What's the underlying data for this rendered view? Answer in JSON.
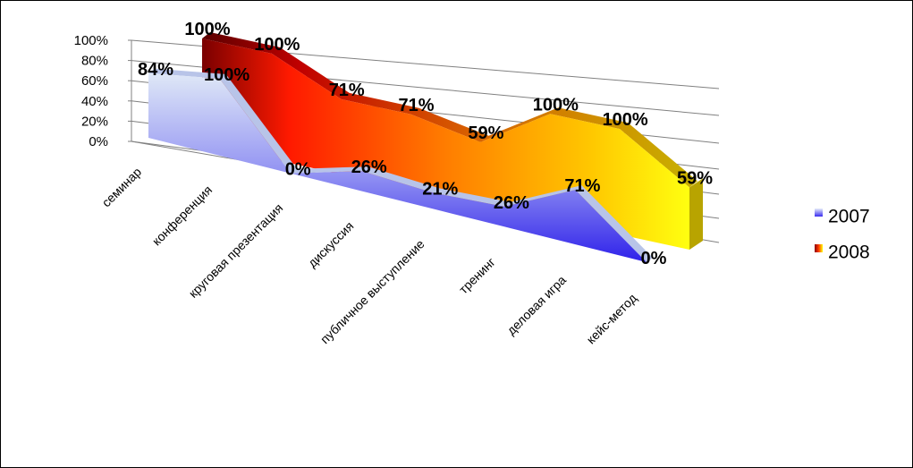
{
  "chart_data": {
    "type": "area",
    "style": "3d-area",
    "categories": [
      "семинар",
      "конференция",
      "круговая презентация",
      "дискуссия",
      "публичное выступление",
      "тренинг",
      "деловая игра",
      "кейс-метод"
    ],
    "series": [
      {
        "name": "2007",
        "values": [
          84,
          100,
          0,
          26,
          21,
          26,
          71,
          0
        ],
        "color_top": "#d8e4f6",
        "color_bottom": "#3a2cf0"
      },
      {
        "name": "2008",
        "values": [
          100,
          100,
          71,
          71,
          59,
          100,
          100,
          59
        ],
        "color_start": "#8a0000",
        "color_mid": "#ff3a00",
        "color_end": "#ffff00"
      }
    ],
    "ylim": [
      0,
      100
    ],
    "y_ticks": [
      "0%",
      "20%",
      "40%",
      "60%",
      "80%",
      "100%"
    ],
    "data_label_format": "percent",
    "grid": true,
    "legend": "right"
  }
}
